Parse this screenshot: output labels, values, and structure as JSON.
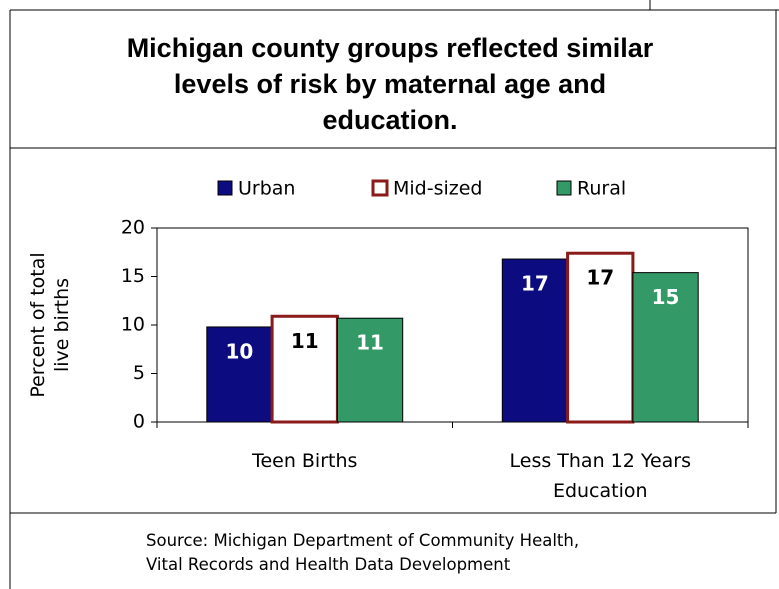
{
  "chart_data": {
    "type": "bar",
    "title": "Michigan county groups reflected similar levels of risk by maternal age and education.",
    "y_label": "Percent of total live births",
    "categories": [
      "Teen Births",
      "Less Than 12 Years Education"
    ],
    "series": [
      {
        "name": "Urban",
        "color": "#0c0c80",
        "values": [
          9.8,
          16.8
        ],
        "value_labels": [
          "10",
          "17"
        ]
      },
      {
        "name": "Mid-sized",
        "color": "#ffffff",
        "values": [
          10.9,
          17.4
        ],
        "value_labels": [
          "11",
          "17"
        ]
      },
      {
        "name": "Rural",
        "color": "#339966",
        "values": [
          10.7,
          15.4
        ],
        "value_labels": [
          "11",
          "15"
        ]
      }
    ],
    "ylim": [
      0,
      20
    ],
    "yticks": [
      0,
      5,
      10,
      15,
      20
    ],
    "grid": false,
    "source": "Source: Michigan Department of Community Health, Vital Records and Health Data Development"
  }
}
